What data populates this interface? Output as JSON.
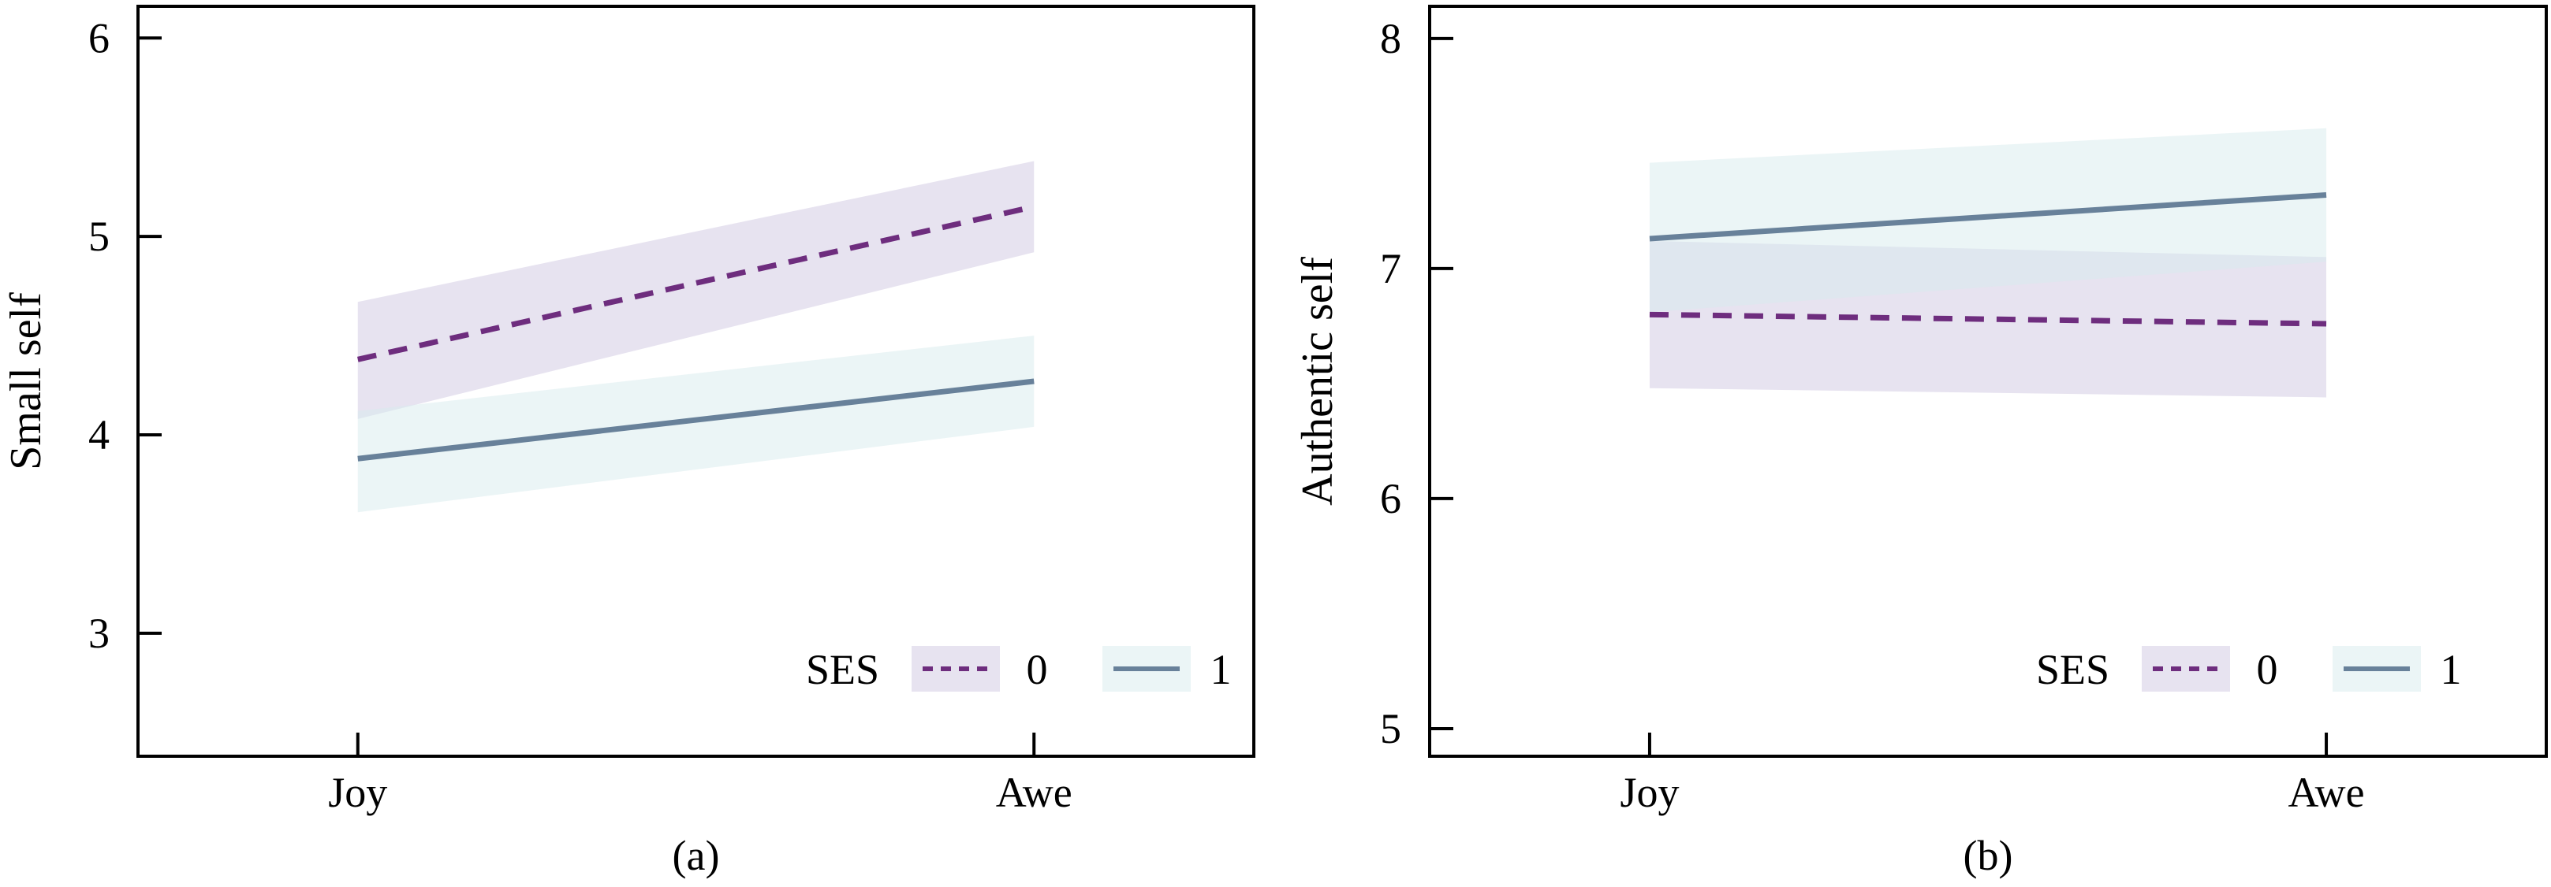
{
  "styles": {
    "ses0_line": "#6E2D7E",
    "ses0_band": "#E7E3F0",
    "ses1_line": "#68819A",
    "ses1_band": "#D8EBED",
    "ses1_band_opacity": 0.5,
    "frame_color": "#000000",
    "text_color": "#000000",
    "background": "#FFFFFF"
  },
  "chart_data": [
    {
      "type": "line",
      "panel": "a",
      "caption": "(a)",
      "title": "",
      "xlabel": "",
      "ylabel": "Small self",
      "categories": [
        "Joy",
        "Awe"
      ],
      "yticks": [
        6,
        5,
        4,
        3
      ],
      "ylim": [
        2.38,
        6.16
      ],
      "grid": false,
      "legend_title": "SES",
      "legend_position": "bottom-right",
      "series": [
        {
          "name": "0",
          "line_style": "dashed",
          "values": [
            4.38,
            5.15
          ],
          "ci_lower": [
            4.08,
            4.92
          ],
          "ci_upper": [
            4.67,
            5.38
          ]
        },
        {
          "name": "1",
          "line_style": "solid",
          "values": [
            3.88,
            4.27
          ],
          "ci_lower": [
            3.61,
            4.04
          ],
          "ci_upper": [
            4.12,
            4.5
          ]
        }
      ]
    },
    {
      "type": "line",
      "panel": "b",
      "caption": "(b)",
      "title": "",
      "xlabel": "",
      "ylabel": "Authentic self",
      "categories": [
        "Joy",
        "Awe"
      ],
      "yticks": [
        8,
        7,
        6,
        5
      ],
      "ylim": [
        4.88,
        8.14
      ],
      "grid": false,
      "legend_title": "SES",
      "legend_position": "bottom-right",
      "series": [
        {
          "name": "0",
          "line_style": "dashed",
          "values": [
            6.8,
            6.76
          ],
          "ci_lower": [
            6.48,
            6.44
          ],
          "ci_upper": [
            7.12,
            7.05
          ]
        },
        {
          "name": "1",
          "line_style": "solid",
          "values": [
            7.13,
            7.32
          ],
          "ci_lower": [
            6.81,
            7.03
          ],
          "ci_upper": [
            7.46,
            7.61
          ]
        }
      ]
    }
  ]
}
